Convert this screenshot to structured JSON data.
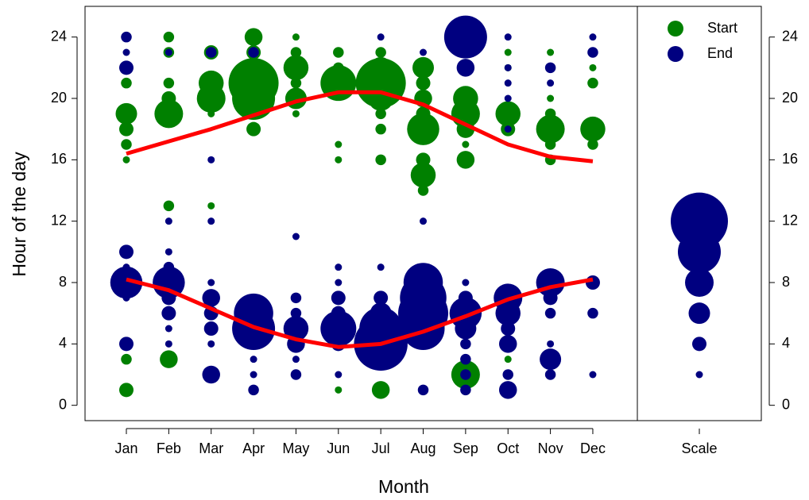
{
  "chart_data": {
    "type": "bubble",
    "xlabel": "Month",
    "ylabel": "Hour of the day",
    "categories": [
      "Jan",
      "Feb",
      "Mar",
      "Apr",
      "May",
      "Jun",
      "Jul",
      "Aug",
      "Sep",
      "Oct",
      "Nov",
      "Dec"
    ],
    "ylim": [
      -1,
      26
    ],
    "yticks": [
      0,
      4,
      8,
      12,
      16,
      20,
      24
    ],
    "legend": "top-right",
    "series": [
      {
        "name": "Start",
        "color": "#008000",
        "x": [
          "Jan",
          "Jan",
          "Jan",
          "Jan",
          "Jan",
          "Jan",
          "Jan",
          "Feb",
          "Feb",
          "Feb",
          "Feb",
          "Feb",
          "Feb",
          "Feb",
          "Mar",
          "Mar",
          "Mar",
          "Mar",
          "Mar",
          "Apr",
          "Apr",
          "Apr",
          "Apr",
          "Apr",
          "May",
          "May",
          "May",
          "May",
          "May",
          "May",
          "Jun",
          "Jun",
          "Jun",
          "Jun",
          "Jun",
          "Jun",
          "Jul",
          "Jul",
          "Jul",
          "Jul",
          "Jul",
          "Jul",
          "Jul",
          "Jul",
          "Aug",
          "Aug",
          "Aug",
          "Aug",
          "Aug",
          "Aug",
          "Aug",
          "Aug",
          "Sep",
          "Sep",
          "Sep",
          "Sep",
          "Sep",
          "Sep",
          "Oct",
          "Oct",
          "Oct",
          "Oct",
          "Oct",
          "Nov",
          "Nov",
          "Nov",
          "Nov",
          "Nov",
          "Nov",
          "Dec",
          "Dec",
          "Dec",
          "Dec"
        ],
        "y": [
          21,
          19,
          18,
          17,
          16,
          3,
          1,
          24,
          23,
          21,
          20,
          19,
          13,
          3,
          23,
          21,
          20,
          19,
          13,
          24,
          23,
          21,
          20,
          18,
          24,
          23,
          22,
          21,
          20,
          19,
          23,
          22,
          21,
          17,
          16,
          1,
          23,
          22,
          21,
          20,
          19,
          18,
          16,
          1,
          22,
          21,
          20,
          19,
          18,
          16,
          15,
          14,
          20,
          19,
          18,
          17,
          16,
          2,
          23,
          22,
          19,
          18,
          3,
          23,
          20,
          19,
          18,
          17,
          16,
          22,
          21,
          18,
          17
        ],
        "size": [
          1.5,
          3,
          2,
          1.5,
          1,
          1.5,
          2,
          1.5,
          1.5,
          1.5,
          2,
          4,
          1.5,
          2.5,
          2,
          3.5,
          4,
          1,
          1,
          2.5,
          2,
          7,
          6,
          2,
          1,
          1.5,
          3.5,
          1.5,
          3,
          1,
          1.5,
          1.5,
          5,
          1,
          1,
          1,
          1.5,
          3,
          7,
          3.5,
          1.5,
          1.5,
          1.5,
          2.5,
          3,
          2,
          2.5,
          2,
          4.5,
          2,
          3.5,
          1.5,
          3.5,
          4,
          2.5,
          1,
          2.5,
          4,
          1,
          1,
          3.5,
          2,
          1,
          1,
          1,
          1.5,
          4,
          1.5,
          1.5,
          1,
          1.5,
          3.5,
          1.5
        ]
      },
      {
        "name": "End",
        "color": "#000080",
        "x": [
          "Jan",
          "Jan",
          "Jan",
          "Jan",
          "Jan",
          "Jan",
          "Jan",
          "Jan",
          "Feb",
          "Feb",
          "Feb",
          "Feb",
          "Feb",
          "Feb",
          "Feb",
          "Feb",
          "Feb",
          "Mar",
          "Mar",
          "Mar",
          "Mar",
          "Mar",
          "Mar",
          "Mar",
          "Mar",
          "Mar",
          "Apr",
          "Apr",
          "Apr",
          "Apr",
          "Apr",
          "Apr",
          "May",
          "May",
          "May",
          "May",
          "May",
          "May",
          "May",
          "Jun",
          "Jun",
          "Jun",
          "Jun",
          "Jun",
          "Jun",
          "Jun",
          "Jul",
          "Jul",
          "Jul",
          "Jul",
          "Jul",
          "Jul",
          "Aug",
          "Aug",
          "Aug",
          "Aug",
          "Aug",
          "Aug",
          "Aug",
          "Aug",
          "Sep",
          "Sep",
          "Sep",
          "Sep",
          "Sep",
          "Sep",
          "Sep",
          "Sep",
          "Sep",
          "Sep",
          "Oct",
          "Oct",
          "Oct",
          "Oct",
          "Oct",
          "Oct",
          "Oct",
          "Oct",
          "Oct",
          "Oct",
          "Oct",
          "Nov",
          "Nov",
          "Nov",
          "Nov",
          "Nov",
          "Nov",
          "Nov",
          "Nov",
          "Dec",
          "Dec",
          "Dec",
          "Dec",
          "Dec"
        ],
        "y": [
          24,
          23,
          22,
          10,
          9,
          8,
          7,
          4,
          23,
          12,
          10,
          9,
          8,
          7,
          6,
          5,
          4,
          23,
          16,
          12,
          8,
          7,
          6,
          5,
          4,
          2,
          23,
          6,
          5,
          3,
          2,
          1,
          11,
          7,
          6,
          5,
          4,
          3,
          2,
          9,
          8,
          7,
          6,
          5,
          4,
          2,
          24,
          9,
          7,
          6,
          5,
          4,
          23,
          12,
          9,
          8,
          7,
          6,
          5,
          1,
          24,
          22,
          8,
          7,
          6,
          5,
          4,
          3,
          2,
          1,
          24,
          22,
          21,
          20,
          18,
          7,
          6,
          5,
          4,
          2,
          1,
          22,
          21,
          8,
          7,
          6,
          4,
          3,
          2,
          24,
          23,
          8,
          6,
          2
        ],
        "size": [
          1.5,
          1,
          2,
          2,
          1,
          4.5,
          1,
          2,
          1,
          1,
          1,
          1.5,
          4.5,
          2,
          2,
          1,
          1,
          1.5,
          1,
          1,
          1,
          2.5,
          2,
          2,
          1,
          2.5,
          1.5,
          5.5,
          6,
          1,
          1,
          1.5,
          1,
          1.5,
          1.5,
          3.5,
          2.5,
          1,
          1.5,
          1,
          1,
          2,
          2,
          5,
          2,
          1,
          1,
          1,
          2,
          3,
          6,
          7.5,
          1,
          1,
          1,
          5.5,
          6.5,
          7,
          6,
          1.5,
          6,
          2.5,
          1,
          2,
          4.5,
          3,
          1.5,
          1.5,
          1.5,
          1.5,
          1,
          1,
          1,
          1,
          1,
          4,
          3.5,
          2,
          2.5,
          1.5,
          2.5,
          1.5,
          1,
          4,
          2,
          1.5,
          1,
          3,
          1.5,
          1,
          1.5,
          2,
          1.5,
          1
        ]
      }
    ],
    "trend_lines": [
      {
        "color": "#ff0000",
        "values": [
          16.4,
          17.2,
          18.0,
          18.9,
          19.8,
          20.4,
          20.4,
          19.6,
          18.3,
          17.0,
          16.2,
          15.9
        ]
      },
      {
        "color": "#ff0000",
        "values": [
          8.2,
          7.5,
          6.3,
          5.1,
          4.3,
          3.8,
          4.0,
          4.8,
          5.8,
          6.9,
          7.7,
          8.2
        ]
      }
    ],
    "scale": {
      "label": "Scale",
      "color": "#000080",
      "y": [
        2,
        4,
        6,
        8,
        10,
        12
      ],
      "size": [
        1,
        2,
        3,
        4,
        6,
        8
      ]
    }
  }
}
